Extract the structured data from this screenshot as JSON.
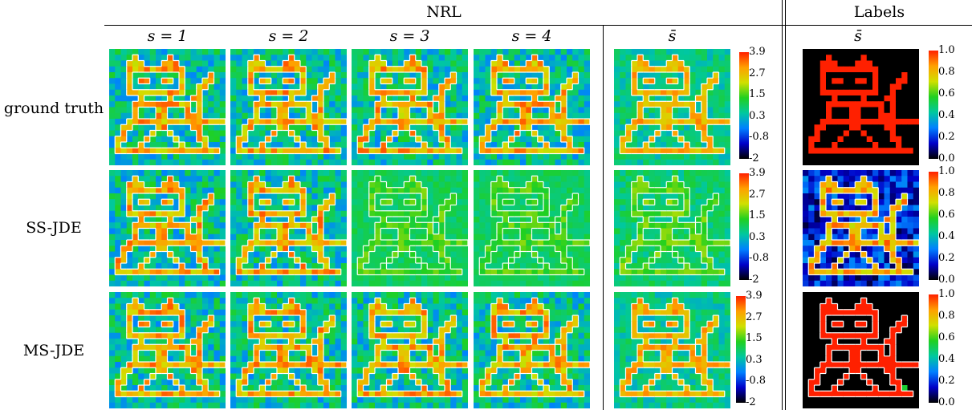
{
  "header": {
    "nrl": "NRL",
    "labels": "Labels"
  },
  "columns": [
    "s = 1",
    "s = 2",
    "s = 3",
    "s = 4",
    "s̄"
  ],
  "labels_column": "s̄",
  "rows": [
    "ground truth",
    "SS-JDE",
    "MS-JDE"
  ],
  "nrl_colorbar_ticks": [
    "3.9",
    "2.7",
    "1.5",
    "0.3",
    "-0.8",
    "-2"
  ],
  "labels_colorbar_ticks": [
    "1.0",
    "0.8",
    "0.6",
    "0.4",
    "0.2",
    "0.0"
  ],
  "colormap": [
    "#000000",
    "#0000c8",
    "#0080ff",
    "#00c8a0",
    "#20d020",
    "#d0e000",
    "#ffa000",
    "#ff2000"
  ]
}
